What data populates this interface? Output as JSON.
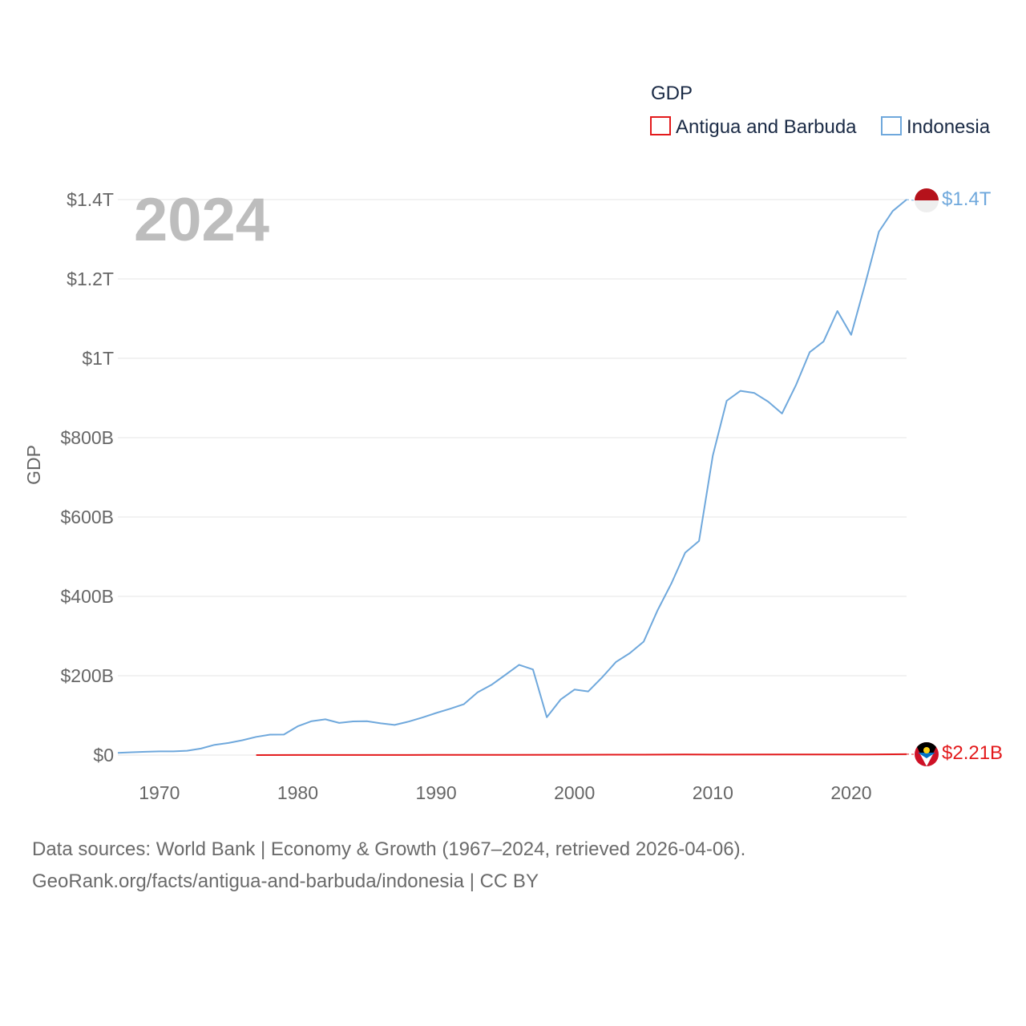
{
  "chart_data": {
    "type": "line",
    "year_watermark": "2024",
    "ylabel": "GDP",
    "ylim": [
      0,
      1400
    ],
    "xlim": [
      1967,
      2024
    ],
    "yticks": [
      0,
      200,
      400,
      600,
      800,
      1000,
      1200,
      1400
    ],
    "ytick_labels": [
      "$0",
      "$200B",
      "$400B",
      "$600B",
      "$800B",
      "$1T",
      "$1.2T",
      "$1.4T"
    ],
    "xticks": [
      1970,
      1980,
      1990,
      2000,
      2010,
      2020
    ],
    "xtick_labels": [
      "1970",
      "1980",
      "1990",
      "2000",
      "2010",
      "2020"
    ],
    "legend": {
      "title": "GDP",
      "items": [
        {
          "name": "Antigua and Barbuda",
          "color": "#e31a1c"
        },
        {
          "name": "Indonesia",
          "color": "#6fa8dc"
        }
      ],
      "position": "top-right"
    },
    "series": [
      {
        "name": "Indonesia",
        "color": "#6fa8dc",
        "end_label": "$1.4T",
        "x": [
          1967,
          1968,
          1969,
          1970,
          1971,
          1972,
          1973,
          1974,
          1975,
          1976,
          1977,
          1978,
          1979,
          1980,
          1981,
          1982,
          1983,
          1984,
          1985,
          1986,
          1987,
          1988,
          1989,
          1990,
          1991,
          1992,
          1993,
          1994,
          1995,
          1996,
          1997,
          1998,
          1999,
          2000,
          2001,
          2002,
          2003,
          2004,
          2005,
          2006,
          2007,
          2008,
          2009,
          2010,
          2011,
          2012,
          2013,
          2014,
          2015,
          2016,
          2017,
          2018,
          2019,
          2020,
          2021,
          2022,
          2023,
          2024
        ],
        "values": [
          5.7,
          7.0,
          8.3,
          9.2,
          9.3,
          10.9,
          16.3,
          25.8,
          30.5,
          37.3,
          45.8,
          51.5,
          51.8,
          72.5,
          85.5,
          90.2,
          81.1,
          84.9,
          85.3,
          79.9,
          75.9,
          84.3,
          94.5,
          106.1,
          116.6,
          128.0,
          158.0,
          176.9,
          202.1,
          227.4,
          215.7,
          95.4,
          140.0,
          165.0,
          160.4,
          195.7,
          234.8,
          256.8,
          285.9,
          364.6,
          432.2,
          510.2,
          539.6,
          755.1,
          892.9,
          917.9,
          912.5,
          890.8,
          860.9,
          931.9,
          1015.6,
          1042.3,
          1119.1,
          1059.1,
          1186.5,
          1319.1,
          1371.2,
          1400.0
        ]
      },
      {
        "name": "Antigua and Barbuda",
        "color": "#e31a1c",
        "end_label": "$2.21B",
        "x": [
          1977,
          1980,
          1985,
          1990,
          1995,
          2000,
          2005,
          2008,
          2010,
          2015,
          2019,
          2020,
          2021,
          2022,
          2023,
          2024
        ],
        "values": [
          0.08,
          0.14,
          0.23,
          0.46,
          0.58,
          0.83,
          1.1,
          1.35,
          1.15,
          1.35,
          1.66,
          1.4,
          1.55,
          1.8,
          2.05,
          2.21
        ]
      }
    ]
  },
  "footer": {
    "line1": "Data sources: World Bank | Economy & Growth (1967–2024, retrieved 2026-04-06).",
    "line2": "GeoRank.org/facts/antigua-and-barbuda/indonesia | CC BY"
  }
}
